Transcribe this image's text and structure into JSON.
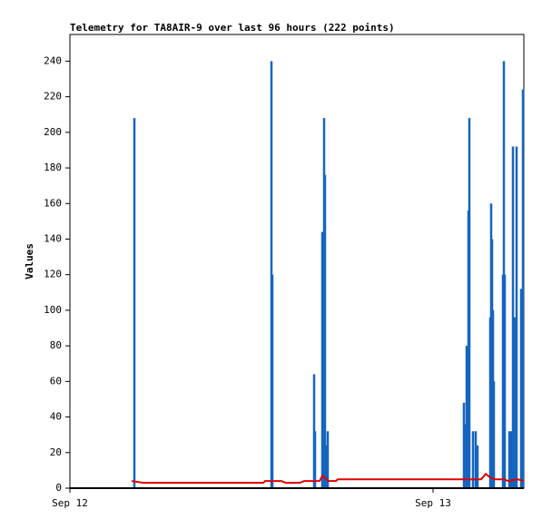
{
  "chart_data": {
    "type": "line",
    "title": "Telemetry for TA8AIR-9 over last 96 hours (222 points)",
    "y_label": "Values",
    "xlim": [
      0,
      30
    ],
    "xticks": [
      {
        "value": 0,
        "label": "Sep 12"
      },
      {
        "value": 24,
        "label": "Sep 13"
      }
    ],
    "ylim": [
      0,
      255
    ],
    "yticks": [
      0,
      20,
      40,
      60,
      80,
      100,
      120,
      140,
      160,
      180,
      200,
      220,
      240
    ],
    "grid": false,
    "series": [
      {
        "style": "impulse",
        "color": "#1565c0",
        "x": [
          4.26,
          13.32,
          13.38,
          16.14,
          16.2,
          16.68,
          16.8,
          16.86,
          16.92,
          17.04,
          26.04,
          26.16,
          26.22,
          26.34,
          26.4,
          26.64,
          26.82,
          26.94,
          27.78,
          27.84,
          27.9,
          27.96,
          28.02,
          28.62,
          28.68,
          28.74,
          29.04,
          29.16,
          29.28,
          29.4,
          29.52,
          29.82,
          29.94
        ],
        "values": [
          208,
          240,
          120,
          64,
          32,
          144,
          208,
          176,
          24,
          32,
          48,
          36,
          80,
          156,
          208,
          32,
          32,
          24,
          96,
          160,
          140,
          100,
          60,
          120,
          240,
          120,
          32,
          32,
          192,
          96,
          192,
          112,
          224
        ]
      },
      {
        "style": "line",
        "color": "#e00000",
        "x": [
          4.08,
          4.86,
          12.78,
          12.9,
          13.98,
          14.28,
          15.18,
          15.48,
          16.5,
          16.68,
          17.1,
          17.58,
          17.7,
          27.18,
          27.48,
          27.78,
          28.08,
          28.68,
          28.98,
          29.58,
          30
        ],
        "values": [
          4,
          3,
          3,
          4,
          4,
          3,
          3,
          4,
          4,
          7,
          4,
          4,
          5,
          5,
          8,
          6,
          5,
          5,
          4,
          5,
          4
        ]
      }
    ]
  }
}
